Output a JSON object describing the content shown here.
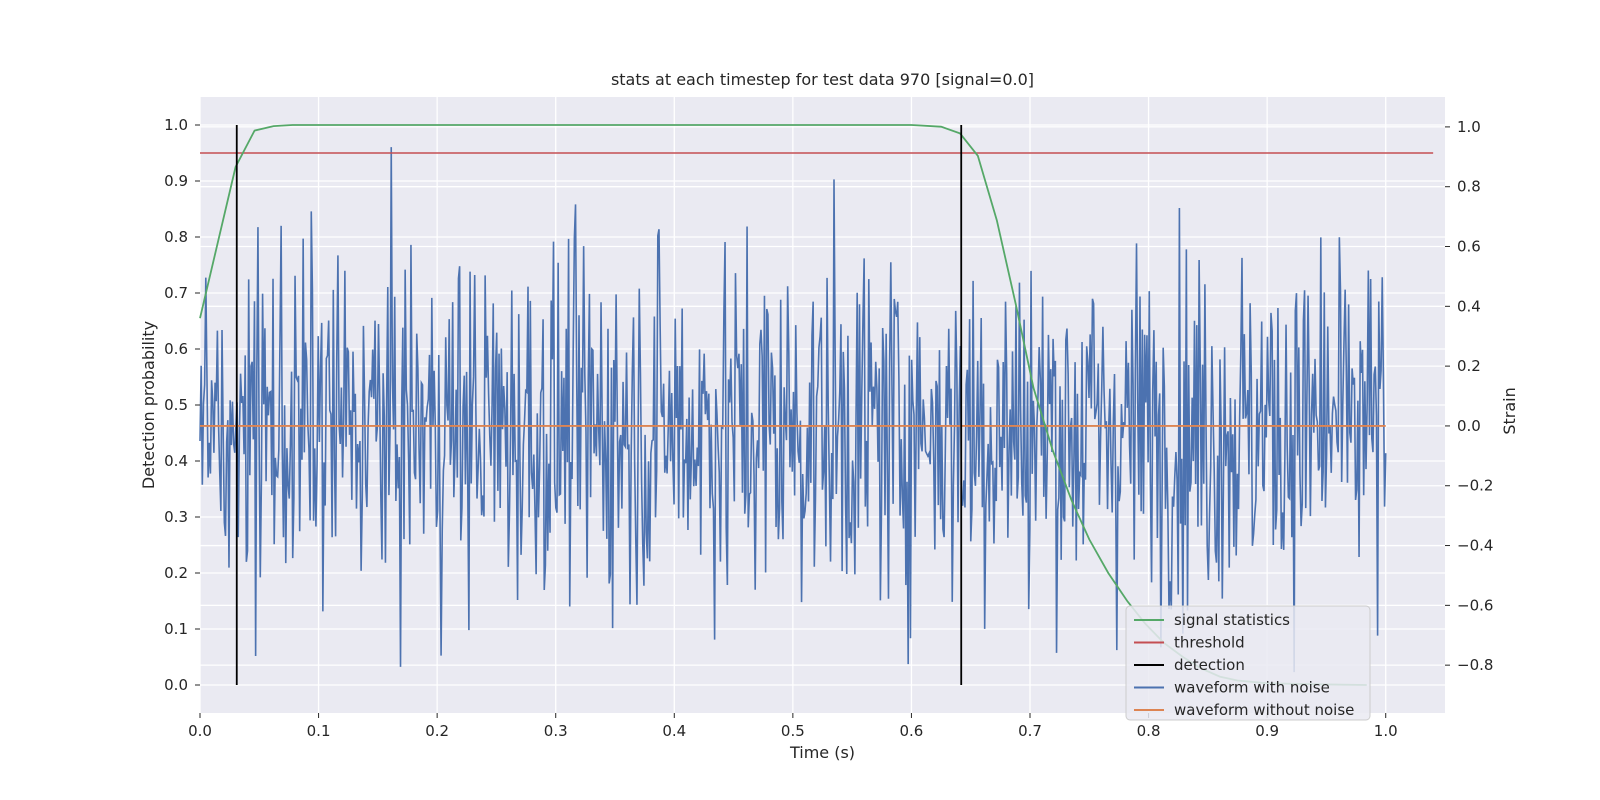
{
  "chart_data": {
    "type": "line",
    "title": "stats at each timestep for test data 970 [signal=0.0]",
    "xlabel": "Time (s)",
    "ylabel_left": "Detection probability",
    "ylabel_right": "Strain",
    "xlim": [
      0.0,
      1.05
    ],
    "ylim_left": [
      -0.05,
      1.05
    ],
    "ylim_right": [
      -0.96,
      1.1
    ],
    "x_ticks": [
      "0.0",
      "0.1",
      "0.2",
      "0.3",
      "0.4",
      "0.5",
      "0.6",
      "0.7",
      "0.8",
      "0.9",
      "1.0"
    ],
    "y_left_ticks": [
      "0.0",
      "0.1",
      "0.2",
      "0.3",
      "0.4",
      "0.5",
      "0.6",
      "0.7",
      "0.8",
      "0.9",
      "1.0"
    ],
    "y_right_ticks": [
      "−0.8",
      "−0.6",
      "−0.4",
      "−0.2",
      "0.0",
      "0.2",
      "0.4",
      "0.6",
      "0.8",
      "1.0"
    ],
    "grid": true,
    "legend_position": "lower-right",
    "colors": {
      "signal_statistics": "#55a868",
      "threshold": "#c44e52",
      "detection": "#000000",
      "waveform_with_noise": "#4c72b0",
      "waveform_without_noise": "#dd8452",
      "plot_bg": "#eaeaf2",
      "grid": "#ffffff"
    },
    "series": [
      {
        "name": "signal statistics",
        "axis": "left",
        "x": [
          0.0,
          0.015,
          0.03,
          0.046,
          0.062,
          0.078,
          0.1,
          0.2,
          0.3,
          0.4,
          0.5,
          0.6,
          0.625,
          0.641,
          0.656,
          0.672,
          0.688,
          0.703,
          0.719,
          0.735,
          0.75,
          0.766,
          0.782,
          0.797,
          0.813,
          0.829,
          0.844,
          0.86,
          0.875,
          0.9,
          0.95,
          0.984
        ],
        "y": [
          0.655,
          0.79,
          0.925,
          0.99,
          0.998,
          1.0,
          1.0,
          1.0,
          1.0,
          1.0,
          1.0,
          1.0,
          0.997,
          0.985,
          0.945,
          0.83,
          0.68,
          0.53,
          0.42,
          0.33,
          0.26,
          0.2,
          0.15,
          0.11,
          0.075,
          0.05,
          0.03,
          0.015,
          0.008,
          0.003,
          0.001,
          0.0
        ]
      },
      {
        "name": "threshold",
        "axis": "left",
        "x": [
          0.0,
          1.04
        ],
        "y": [
          0.95,
          0.95
        ]
      },
      {
        "name": "detection",
        "axis": "left",
        "segments": [
          {
            "x": 0.031,
            "y0": 0.0,
            "y1": 1.0
          },
          {
            "x": 0.642,
            "y0": 0.0,
            "y1": 1.0
          }
        ]
      },
      {
        "name": "waveform with noise",
        "axis": "right",
        "x_range": [
          0.0,
          1.0
        ],
        "n_points": 1024,
        "std": 0.29,
        "y_min": -0.88,
        "y_max": 1.0
      },
      {
        "name": "waveform without noise",
        "axis": "right",
        "x": [
          0.0,
          1.0
        ],
        "y": [
          0.0,
          0.0
        ]
      }
    ]
  }
}
